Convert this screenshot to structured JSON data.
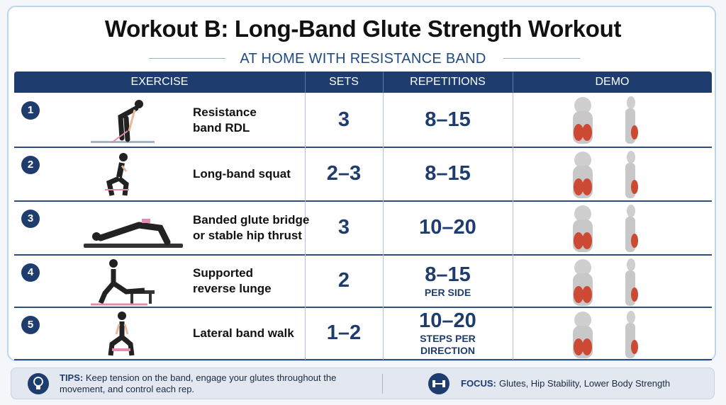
{
  "header": {
    "title": "Workout B: Long-Band Glute Strength Workout",
    "subtitle": "AT HOME WITH RESISTANCE BAND"
  },
  "table": {
    "columns": [
      "EXERCISE",
      "SETS",
      "REPETITIONS",
      "DEMO"
    ],
    "rows": [
      {
        "number": "1",
        "exercise": [
          "Resistance",
          "band RDL"
        ],
        "sets": "3",
        "reps": "8–15"
      },
      {
        "number": "2",
        "exercise": [
          "Long-band squat"
        ],
        "sets": "2–3",
        "reps": "8–15"
      },
      {
        "number": "3",
        "exercise": [
          "Banded glute bridge",
          "or stable hip thrust"
        ],
        "sets": "3",
        "reps": "10–20"
      },
      {
        "number": "4",
        "exercise": [
          "Supported",
          "reverse lunge"
        ],
        "sets": "2",
        "reps": "8–15",
        "reps_note": [
          "PER SIDE"
        ]
      },
      {
        "number": "5",
        "exercise": [
          "Lateral band walk"
        ],
        "sets": "1–2",
        "reps": "10–20",
        "reps_note": [
          "STEPS PER",
          "DIRECTION"
        ]
      }
    ]
  },
  "footer": {
    "tips_label": "TIPS:",
    "tips": "Keep tension on the band, engage your glutes throughout the movement, and control each rep.",
    "focus_label": "FOCUS:",
    "focus": "Glutes, Hip Stability, Lower Body Strength"
  }
}
